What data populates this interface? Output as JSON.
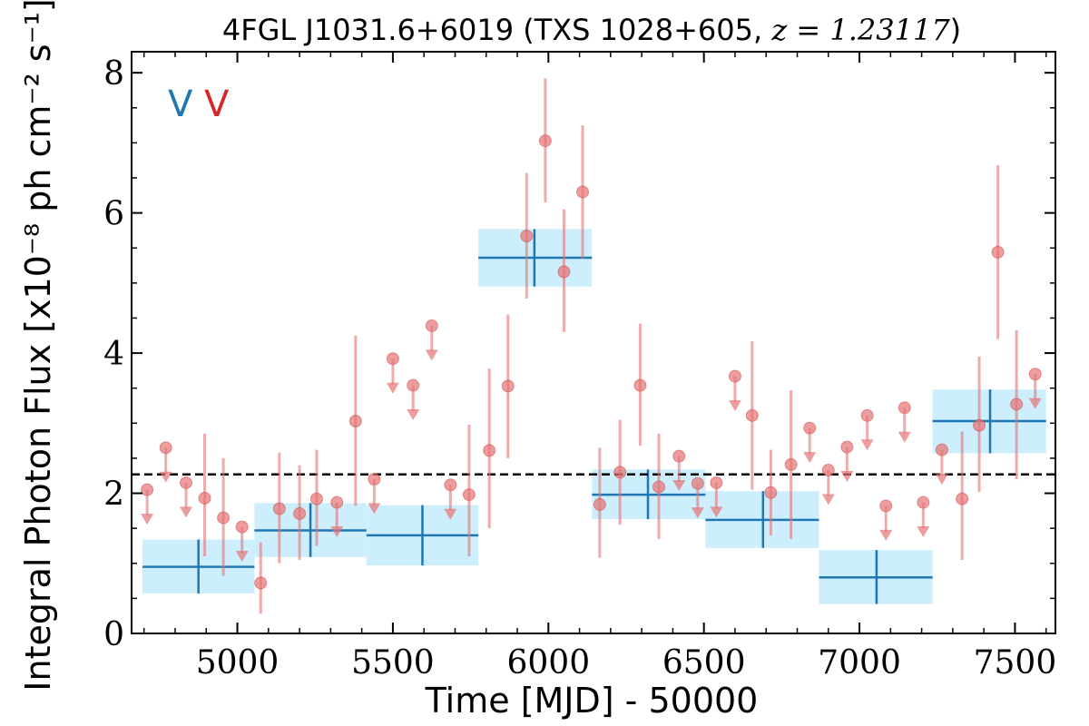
{
  "chart_data": {
    "type": "scatter",
    "title": "4FGL J1031.6+6019 (TXS 1028+605, z = 1.23117)",
    "xlabel": "Time [MJD] - 50000",
    "ylabel": "Integral Photon Flux [x10⁻⁸ ph cm⁻² s⁻¹]",
    "xlim": [
      4660,
      7630
    ],
    "ylim": [
      0,
      8.3
    ],
    "xticks": [
      5000,
      5500,
      6000,
      6500,
      7000,
      7500
    ],
    "yticks": [
      0,
      2,
      4,
      6,
      8
    ],
    "grid": false,
    "legend_position": "top-left",
    "legend": [
      {
        "label": "V",
        "color": "#1f77b4"
      },
      {
        "label": "V",
        "color": "#d62728"
      }
    ],
    "mean_flux": 2.27,
    "colors": {
      "bin_line": "#1f77b4",
      "bin_fill": "#cdeefc",
      "points": "#e57373",
      "mean_line": "#000000"
    },
    "binned": [
      {
        "x": 4875,
        "x_lo": 4695,
        "x_hi": 5055,
        "y": 0.95,
        "y_lo": 0.57,
        "y_hi": 1.34
      },
      {
        "x": 5235,
        "x_lo": 5055,
        "x_hi": 5415,
        "y": 1.47,
        "y_lo": 1.09,
        "y_hi": 1.86
      },
      {
        "x": 5595,
        "x_lo": 5415,
        "x_hi": 5775,
        "y": 1.4,
        "y_lo": 0.97,
        "y_hi": 1.83
      },
      {
        "x": 5955,
        "x_lo": 5775,
        "x_hi": 6140,
        "y": 5.36,
        "y_lo": 4.95,
        "y_hi": 5.77
      },
      {
        "x": 6320,
        "x_lo": 6140,
        "x_hi": 6505,
        "y": 1.98,
        "y_lo": 1.63,
        "y_hi": 2.34
      },
      {
        "x": 6690,
        "x_lo": 6505,
        "x_hi": 6870,
        "y": 1.62,
        "y_lo": 1.22,
        "y_hi": 2.03
      },
      {
        "x": 7055,
        "x_lo": 6870,
        "x_hi": 7235,
        "y": 0.8,
        "y_lo": 0.42,
        "y_hi": 1.19
      },
      {
        "x": 7420,
        "x_lo": 7235,
        "x_hi": 7600,
        "y": 3.03,
        "y_lo": 2.57,
        "y_hi": 3.48
      }
    ],
    "detections": [
      {
        "x": 4895,
        "y": 1.93,
        "y_lo": 1.1,
        "y_hi": 2.85
      },
      {
        "x": 4955,
        "y": 1.65,
        "y_lo": 0.82,
        "y_hi": 2.5
      },
      {
        "x": 5075,
        "y": 0.72,
        "y_lo": 0.28,
        "y_hi": 1.3
      },
      {
        "x": 5135,
        "y": 1.78,
        "y_lo": 1.0,
        "y_hi": 2.58
      },
      {
        "x": 5200,
        "y": 1.71,
        "y_lo": 1.05,
        "y_hi": 2.4
      },
      {
        "x": 5255,
        "y": 1.92,
        "y_lo": 1.25,
        "y_hi": 2.62
      },
      {
        "x": 5380,
        "y": 3.03,
        "y_lo": 1.82,
        "y_hi": 4.25
      },
      {
        "x": 5745,
        "y": 1.98,
        "y_lo": 1.1,
        "y_hi": 2.98
      },
      {
        "x": 5810,
        "y": 2.61,
        "y_lo": 1.5,
        "y_hi": 3.78
      },
      {
        "x": 5870,
        "y": 3.53,
        "y_lo": 2.5,
        "y_hi": 4.55
      },
      {
        "x": 5930,
        "y": 5.67,
        "y_lo": 4.78,
        "y_hi": 6.57
      },
      {
        "x": 5990,
        "y": 7.03,
        "y_lo": 6.15,
        "y_hi": 7.92
      },
      {
        "x": 6050,
        "y": 5.16,
        "y_lo": 4.3,
        "y_hi": 6.05
      },
      {
        "x": 6110,
        "y": 6.3,
        "y_lo": 5.35,
        "y_hi": 7.25
      },
      {
        "x": 6165,
        "y": 1.84,
        "y_lo": 1.08,
        "y_hi": 2.65
      },
      {
        "x": 6230,
        "y": 2.3,
        "y_lo": 1.55,
        "y_hi": 3.05
      },
      {
        "x": 6295,
        "y": 3.54,
        "y_lo": 2.68,
        "y_hi": 4.42
      },
      {
        "x": 6355,
        "y": 2.09,
        "y_lo": 1.35,
        "y_hi": 2.85
      },
      {
        "x": 6655,
        "y": 3.11,
        "y_lo": 2.05,
        "y_hi": 4.17
      },
      {
        "x": 6715,
        "y": 2.01,
        "y_lo": 1.4,
        "y_hi": 2.62
      },
      {
        "x": 6780,
        "y": 2.41,
        "y_lo": 1.35,
        "y_hi": 3.47
      },
      {
        "x": 7330,
        "y": 1.92,
        "y_lo": 1.05,
        "y_hi": 2.88
      },
      {
        "x": 7385,
        "y": 2.97,
        "y_lo": 2.02,
        "y_hi": 3.95
      },
      {
        "x": 7445,
        "y": 5.44,
        "y_lo": 4.2,
        "y_hi": 6.68
      },
      {
        "x": 7505,
        "y": 3.27,
        "y_lo": 2.2,
        "y_hi": 4.33
      }
    ],
    "upper_limits": [
      {
        "x": 4710,
        "y": 2.05
      },
      {
        "x": 4770,
        "y": 2.65
      },
      {
        "x": 4835,
        "y": 2.15
      },
      {
        "x": 5015,
        "y": 1.52
      },
      {
        "x": 5320,
        "y": 1.87
      },
      {
        "x": 5440,
        "y": 2.2
      },
      {
        "x": 5500,
        "y": 3.92
      },
      {
        "x": 5565,
        "y": 3.54
      },
      {
        "x": 5625,
        "y": 4.39
      },
      {
        "x": 5685,
        "y": 2.12
      },
      {
        "x": 6420,
        "y": 2.53
      },
      {
        "x": 6480,
        "y": 2.14
      },
      {
        "x": 6540,
        "y": 2.15
      },
      {
        "x": 6600,
        "y": 3.67
      },
      {
        "x": 6840,
        "y": 2.93
      },
      {
        "x": 6900,
        "y": 2.33
      },
      {
        "x": 6960,
        "y": 2.66
      },
      {
        "x": 7025,
        "y": 3.11
      },
      {
        "x": 7085,
        "y": 1.82
      },
      {
        "x": 7145,
        "y": 3.22
      },
      {
        "x": 7205,
        "y": 1.87
      },
      {
        "x": 7265,
        "y": 2.62
      },
      {
        "x": 7565,
        "y": 3.7
      }
    ]
  }
}
